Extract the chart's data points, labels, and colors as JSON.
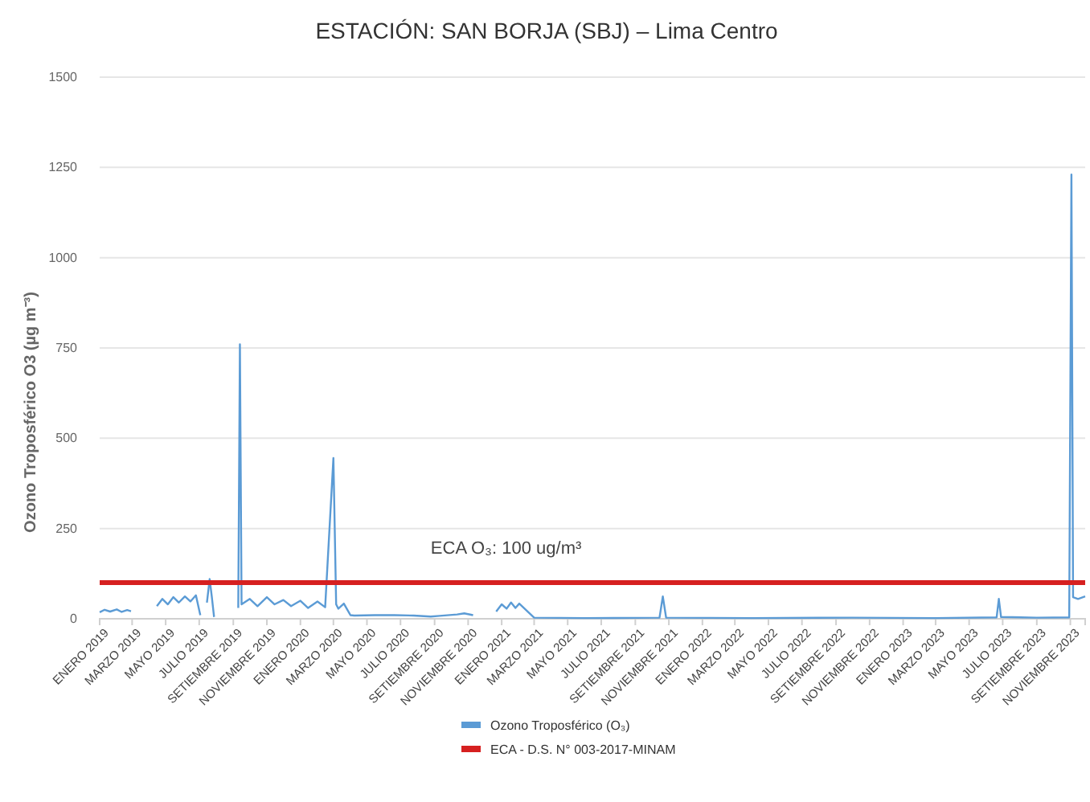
{
  "chart_data": {
    "type": "line",
    "title": "ESTACIÓN: SAN BORJA (SBJ) – Lima Centro",
    "ylabel": "Ozono Troposférico O3 (µg m⁻³)",
    "xlim": [
      "2019-01-01",
      "2023-11-28"
    ],
    "xticks": [
      {
        "value": "2019-01",
        "label": "ENERO 2019"
      },
      {
        "value": "2019-03",
        "label": "MARZO 2019"
      },
      {
        "value": "2019-05",
        "label": "MAYO 2019"
      },
      {
        "value": "2019-07",
        "label": "JULIO 2019"
      },
      {
        "value": "2019-09",
        "label": "SETIEMBRE 2019"
      },
      {
        "value": "2019-11",
        "label": "NOVIEMBRE 2019"
      },
      {
        "value": "2020-01",
        "label": "ENERO 2020"
      },
      {
        "value": "2020-03",
        "label": "MARZO 2020"
      },
      {
        "value": "2020-05",
        "label": "MAYO 2020"
      },
      {
        "value": "2020-07",
        "label": "JULIO 2020"
      },
      {
        "value": "2020-09",
        "label": "SETIEMBRE 2020"
      },
      {
        "value": "2020-11",
        "label": "NOVIEMBRE 2020"
      },
      {
        "value": "2021-01",
        "label": "ENERO 2021"
      },
      {
        "value": "2021-03",
        "label": "MARZO 2021"
      },
      {
        "value": "2021-05",
        "label": "MAYO 2021"
      },
      {
        "value": "2021-07",
        "label": "JULIO 2021"
      },
      {
        "value": "2021-09",
        "label": "SETIEMBRE 2021"
      },
      {
        "value": "2021-11",
        "label": "NOVIEMBRE 2021"
      },
      {
        "value": "2022-01",
        "label": "ENERO 2022"
      },
      {
        "value": "2022-03",
        "label": "MARZO 2022"
      },
      {
        "value": "2022-05",
        "label": "MAYO 2022"
      },
      {
        "value": "2022-07",
        "label": "JULIO 2022"
      },
      {
        "value": "2022-09",
        "label": "SETIEMBRE 2022"
      },
      {
        "value": "2022-11",
        "label": "NOVIEMBRE 2022"
      },
      {
        "value": "2023-01",
        "label": "ENERO 2023"
      },
      {
        "value": "2023-03",
        "label": "MARZO 2023"
      },
      {
        "value": "2023-05",
        "label": "MAYO 2023"
      },
      {
        "value": "2023-07",
        "label": "JULIO 2023"
      },
      {
        "value": "2023-09",
        "label": "SETIEMBRE 2023"
      },
      {
        "value": "2023-11",
        "label": "NOVIEMBRE 2023"
      }
    ],
    "ylim": [
      0,
      1500
    ],
    "yticks": [
      0,
      250,
      500,
      750,
      1000,
      1250,
      1500
    ],
    "grid": "y",
    "legend": "bottom",
    "series": [
      {
        "name": "Ozono Troposférico (O₃)",
        "color": "#5b9bd5",
        "x": [
          "2019-01-01",
          "2019-01-10",
          "2019-01-20",
          "2019-02-01",
          "2019-02-10",
          "2019-02-20",
          "2019-02-27",
          "2019-03-10",
          "2019-04-10",
          "2019-04-15",
          "2019-04-25",
          "2019-05-05",
          "2019-05-15",
          "2019-05-25",
          "2019-06-05",
          "2019-06-15",
          "2019-06-25",
          "2019-07-03",
          "2019-07-10",
          "2019-07-15",
          "2019-07-20",
          "2019-07-24",
          "2019-07-28",
          "2019-08-01",
          "2019-08-10",
          "2019-09-05",
          "2019-09-10",
          "2019-09-13",
          "2019-09-16",
          "2019-10-01",
          "2019-10-15",
          "2019-11-01",
          "2019-11-15",
          "2019-12-01",
          "2019-12-15",
          "2020-01-01",
          "2020-01-15",
          "2020-02-01",
          "2020-02-15",
          "2020-03-01",
          "2020-03-06",
          "2020-03-10",
          "2020-03-20",
          "2020-04-01",
          "2020-04-08",
          "2020-05-15",
          "2020-06-20",
          "2020-07-25",
          "2020-08-25",
          "2020-09-10",
          "2020-10-12",
          "2020-10-25",
          "2020-11-10",
          "2020-11-25",
          "2020-12-10",
          "2020-12-22",
          "2021-01-01",
          "2021-01-10",
          "2021-01-18",
          "2021-01-26",
          "2021-02-02",
          "2021-03-01",
          "2021-06-01",
          "2021-10-15",
          "2021-10-21",
          "2021-10-27",
          "2022-04-01",
          "2022-10-01",
          "2023-03-01",
          "2023-06-20",
          "2023-06-24",
          "2023-06-28",
          "2023-09-01",
          "2023-10-30",
          "2023-11-03",
          "2023-11-06",
          "2023-11-15",
          "2023-11-28"
        ],
        "values": [
          18,
          25,
          20,
          26,
          19,
          24,
          21,
          null,
          null,
          35,
          55,
          40,
          60,
          45,
          62,
          48,
          65,
          10,
          null,
          45,
          110,
          60,
          5,
          null,
          null,
          null,
          30,
          760,
          40,
          55,
          35,
          60,
          40,
          52,
          35,
          50,
          30,
          48,
          32,
          445,
          40,
          28,
          42,
          10,
          9,
          10,
          10,
          9,
          6,
          8,
          12,
          15,
          10,
          null,
          null,
          20,
          40,
          28,
          45,
          30,
          42,
          3,
          2,
          3,
          62,
          3,
          2,
          3,
          2,
          4,
          55,
          5,
          3,
          4,
          1230,
          60,
          55,
          62
        ]
      },
      {
        "name": "ECA - D.S. N° 003-2017-MINAM",
        "color": "#d62020",
        "x": [
          "2019-01-01",
          "2023-11-28"
        ],
        "values": [
          100,
          100
        ]
      }
    ],
    "annotations": [
      {
        "text": "ECA O₃: 100 ug/m³",
        "x": "2020-08-25",
        "y": 100
      }
    ]
  }
}
